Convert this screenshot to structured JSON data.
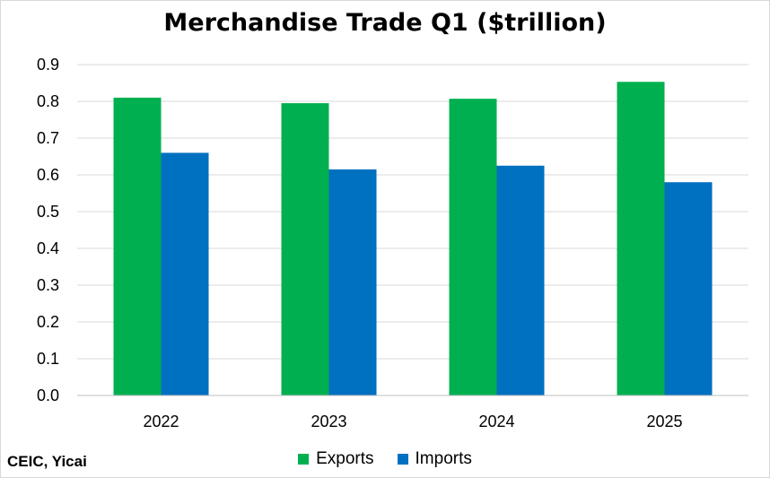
{
  "chart_data": {
    "type": "bar",
    "title": "Merchandise Trade Q1 ($trillion)",
    "categories": [
      "2022",
      "2023",
      "2024",
      "2025"
    ],
    "series": [
      {
        "name": "Exports",
        "color": "#00b050",
        "values": [
          0.81,
          0.795,
          0.807,
          0.853
        ]
      },
      {
        "name": "Imports",
        "color": "#0070c0",
        "values": [
          0.66,
          0.615,
          0.625,
          0.58
        ]
      }
    ],
    "ylim": [
      0,
      0.9
    ],
    "yticks": [
      "0.0",
      "0.1",
      "0.2",
      "0.3",
      "0.4",
      "0.5",
      "0.6",
      "0.7",
      "0.8",
      "0.9"
    ],
    "grid": true,
    "legend": "bottom",
    "source": "CEIC, Yicai"
  }
}
